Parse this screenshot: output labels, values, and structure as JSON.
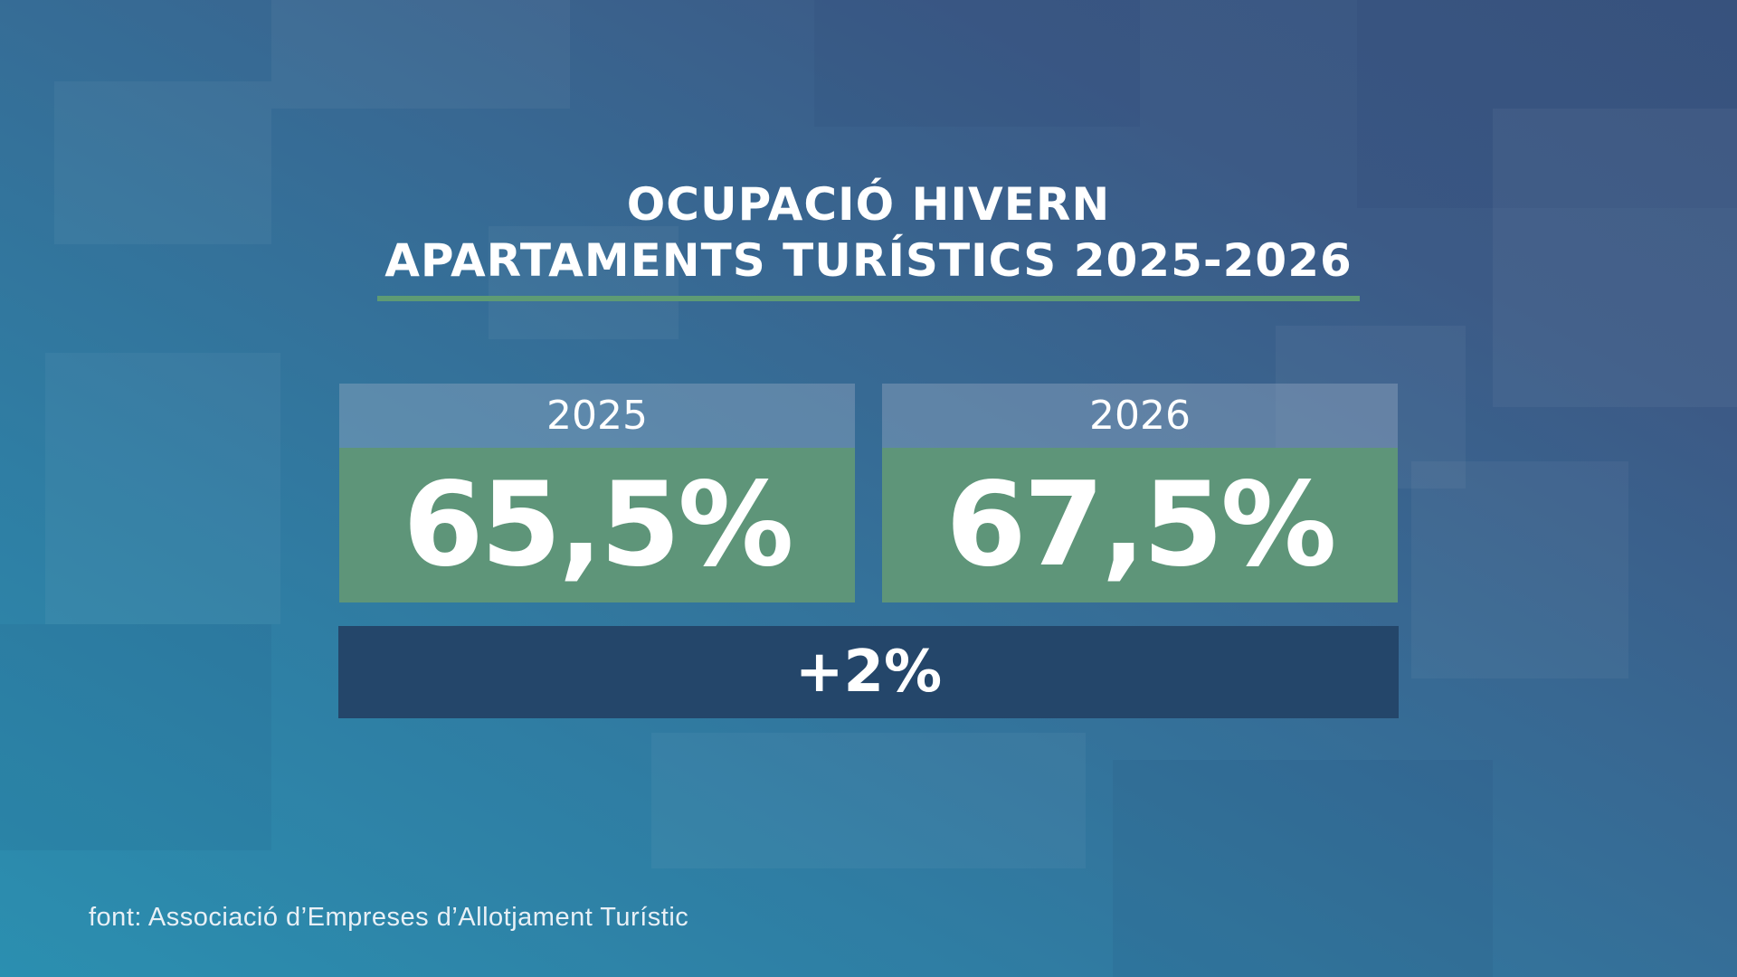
{
  "title": {
    "line1": "OCUPACIÓ HIVERN",
    "line2": "APARTAMENTS TURÍSTICS 2025-2026"
  },
  "cards": [
    {
      "year": "2025",
      "value": "65,5%"
    },
    {
      "year": "2026",
      "value": "67,5%"
    }
  ],
  "difference": "+2%",
  "source": "font: Associació d’Empreses d’Allotjament Turístic",
  "colors": {
    "accent_green": "#5e9579",
    "rule_green": "#5e9b74",
    "diff_bar": "#24466a",
    "background_start": "#2b8fb0",
    "background_end": "#3a5680"
  }
}
